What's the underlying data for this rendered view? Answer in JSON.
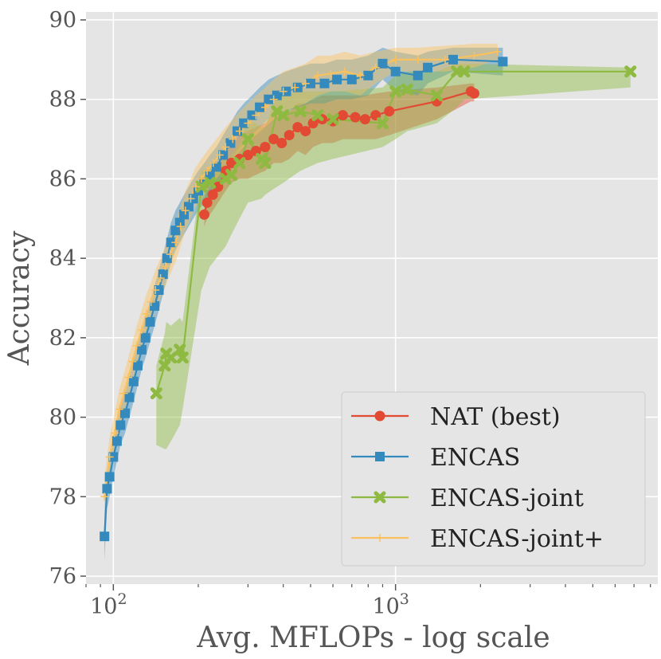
{
  "chart_data": {
    "type": "line",
    "xscale": "log",
    "xlabel": "Avg. MFLOPs - log scale",
    "ylabel": "Accuracy",
    "xlim": [
      80,
      8500
    ],
    "ylim": [
      75.8,
      90.2
    ],
    "x_ticks": [
      {
        "value": 100,
        "base": "10",
        "exp": "2"
      },
      {
        "value": 1000,
        "base": "10",
        "exp": "3"
      }
    ],
    "y_ticks": [
      "76",
      "78",
      "80",
      "82",
      "84",
      "86",
      "88",
      "90"
    ],
    "grid": true,
    "legend_position": "bottom-right",
    "series": [
      {
        "name": "NAT (best)",
        "color": "#e24a33",
        "marker": "circle",
        "x": [
          210,
          215,
          225,
          235,
          250,
          262,
          280,
          300,
          320,
          345,
          370,
          395,
          420,
          450,
          480,
          510,
          550,
          600,
          650,
          720,
          780,
          850,
          950,
          1400,
          1850,
          1900
        ],
        "y": [
          85.1,
          85.4,
          85.6,
          85.8,
          86.2,
          86.4,
          86.5,
          86.6,
          86.7,
          86.8,
          87.0,
          86.9,
          87.1,
          87.3,
          87.2,
          87.4,
          87.5,
          87.45,
          87.6,
          87.55,
          87.5,
          87.6,
          87.7,
          87.95,
          88.2,
          88.15
        ],
        "band_upper": [
          85.5,
          85.8,
          86.0,
          86.3,
          86.7,
          86.9,
          87.1,
          87.2,
          87.3,
          87.4,
          87.6,
          87.6,
          87.7,
          87.9,
          87.9,
          88.0,
          88.1,
          88.1,
          88.1,
          88.1,
          88.1,
          88.15,
          88.2,
          88.3,
          88.4,
          88.4
        ],
        "band_lower": [
          84.8,
          85.0,
          85.2,
          85.4,
          85.7,
          85.9,
          86.0,
          86.0,
          86.1,
          86.2,
          86.4,
          86.4,
          86.5,
          86.7,
          86.6,
          86.8,
          86.9,
          86.9,
          87.0,
          87.0,
          87.0,
          87.0,
          87.1,
          87.5,
          87.95,
          87.95
        ]
      },
      {
        "name": "ENCAS",
        "color": "#348abd",
        "marker": "square",
        "x": [
          93,
          95,
          97,
          100,
          103,
          106,
          110,
          114,
          118,
          122,
          126,
          130,
          135,
          140,
          145,
          150,
          155,
          160,
          166,
          172,
          178,
          185,
          192,
          200,
          210,
          220,
          232,
          245,
          260,
          275,
          290,
          310,
          330,
          355,
          380,
          410,
          450,
          500,
          560,
          620,
          700,
          800,
          900,
          1000,
          1200,
          1300,
          1600,
          2400
        ],
        "y": [
          77.0,
          78.2,
          78.5,
          79.0,
          79.4,
          79.8,
          80.1,
          80.5,
          80.9,
          81.3,
          81.7,
          82.0,
          82.4,
          82.8,
          83.2,
          83.6,
          84.0,
          84.4,
          84.7,
          84.9,
          85.1,
          85.3,
          85.5,
          85.7,
          85.9,
          86.1,
          86.3,
          86.6,
          86.9,
          87.2,
          87.4,
          87.6,
          87.8,
          88.0,
          88.1,
          88.2,
          88.3,
          88.4,
          88.4,
          88.5,
          88.5,
          88.6,
          88.9,
          88.7,
          88.6,
          88.8,
          89.0,
          88.95
        ],
        "band_upper": [
          77.6,
          78.7,
          79.0,
          79.5,
          79.9,
          80.3,
          80.6,
          81.0,
          81.4,
          81.8,
          82.2,
          82.5,
          82.9,
          83.3,
          83.7,
          84.1,
          84.5,
          84.9,
          85.2,
          85.4,
          85.6,
          85.8,
          86.0,
          86.2,
          86.4,
          86.6,
          86.8,
          87.1,
          87.4,
          87.7,
          87.9,
          88.1,
          88.3,
          88.5,
          88.6,
          88.7,
          88.8,
          88.9,
          88.9,
          89.0,
          89.0,
          89.1,
          89.3,
          89.2,
          89.1,
          89.2,
          89.3,
          89.3
        ],
        "band_lower": [
          76.4,
          77.7,
          78.0,
          78.5,
          78.9,
          79.3,
          79.6,
          80.0,
          80.4,
          80.8,
          81.2,
          81.5,
          81.9,
          82.3,
          82.7,
          83.1,
          83.5,
          83.9,
          84.2,
          84.4,
          84.6,
          84.8,
          85.0,
          85.2,
          85.4,
          85.6,
          85.8,
          86.1,
          86.4,
          86.7,
          86.9,
          87.1,
          87.3,
          87.5,
          87.6,
          87.7,
          87.8,
          87.9,
          87.9,
          88.0,
          88.0,
          88.1,
          88.5,
          88.2,
          88.1,
          88.4,
          88.7,
          88.6
        ]
      },
      {
        "name": "ENCAS-joint",
        "color": "#8eba42",
        "marker": "x",
        "x": [
          142,
          152,
          154,
          160,
          172,
          176,
          205,
          220,
          250,
          262,
          280,
          300,
          335,
          345,
          380,
          400,
          460,
          530,
          600,
          900,
          1000,
          1100,
          1400,
          1650,
          1750,
          6800
        ],
        "y": [
          80.6,
          81.3,
          81.6,
          81.5,
          81.7,
          81.5,
          85.8,
          85.9,
          86.0,
          86.1,
          86.4,
          87.0,
          86.5,
          86.4,
          87.7,
          87.6,
          87.7,
          87.6,
          87.5,
          87.4,
          88.2,
          88.25,
          88.1,
          88.7,
          88.7,
          88.7
        ],
        "band_upper": [
          81.3,
          82.1,
          82.4,
          82.3,
          82.5,
          82.4,
          86.2,
          86.3,
          86.5,
          86.6,
          86.9,
          87.5,
          87.3,
          87.3,
          88.1,
          88.1,
          88.2,
          88.2,
          88.2,
          88.3,
          88.6,
          88.7,
          88.7,
          88.9,
          88.9,
          88.8
        ],
        "band_lower": [
          79.3,
          79.2,
          79.2,
          79.4,
          79.8,
          80.2,
          83.2,
          83.8,
          84.3,
          84.6,
          85.0,
          85.4,
          85.5,
          85.6,
          85.8,
          85.9,
          86.2,
          86.4,
          86.5,
          86.8,
          87.0,
          87.2,
          87.4,
          87.8,
          88.0,
          88.3
        ]
      },
      {
        "name": "ENCAS-joint+",
        "color": "#fbc15e",
        "marker": "plus",
        "x": [
          93,
          97,
          101,
          105,
          109,
          113,
          117,
          121,
          126,
          131,
          136,
          141,
          147,
          153,
          159,
          166,
          173,
          180,
          188,
          196,
          205,
          215,
          226,
          238,
          250,
          265,
          280,
          300,
          320,
          345,
          370,
          400,
          440,
          480,
          530,
          590,
          660,
          750,
          850,
          1000,
          1200,
          1500,
          1900,
          2300
        ],
        "y": [
          78.0,
          79.0,
          79.6,
          80.2,
          80.6,
          81.0,
          81.4,
          81.8,
          82.2,
          82.6,
          82.9,
          83.2,
          83.5,
          83.8,
          84.1,
          84.4,
          84.8,
          85.2,
          85.5,
          85.8,
          86.0,
          86.2,
          86.4,
          86.6,
          86.8,
          87.0,
          87.2,
          87.4,
          87.6,
          87.8,
          88.0,
          88.2,
          88.3,
          88.4,
          88.6,
          88.65,
          88.7,
          88.6,
          88.8,
          89.0,
          89.0,
          89.0,
          89.1,
          89.2
        ],
        "band_upper": [
          78.5,
          79.5,
          80.1,
          80.7,
          81.1,
          81.5,
          81.9,
          82.3,
          82.7,
          83.1,
          83.4,
          83.7,
          84.0,
          84.3,
          84.6,
          84.9,
          85.3,
          85.7,
          86.0,
          86.3,
          86.5,
          86.7,
          86.9,
          87.1,
          87.3,
          87.5,
          87.7,
          87.9,
          88.1,
          88.3,
          88.5,
          88.7,
          88.8,
          88.9,
          89.1,
          89.1,
          89.2,
          89.1,
          89.2,
          89.3,
          89.3,
          89.35,
          89.4,
          89.4
        ],
        "band_lower": [
          77.5,
          78.5,
          79.1,
          79.7,
          80.1,
          80.5,
          80.9,
          81.3,
          81.7,
          82.1,
          82.4,
          82.7,
          83.0,
          83.3,
          83.6,
          83.9,
          84.3,
          84.7,
          85.0,
          85.3,
          85.5,
          85.7,
          85.9,
          86.1,
          86.3,
          86.5,
          86.7,
          86.9,
          87.1,
          87.3,
          87.5,
          87.7,
          87.8,
          87.9,
          88.1,
          88.2,
          88.2,
          88.1,
          88.4,
          88.7,
          88.7,
          88.7,
          88.8,
          89.0
        ]
      }
    ]
  }
}
